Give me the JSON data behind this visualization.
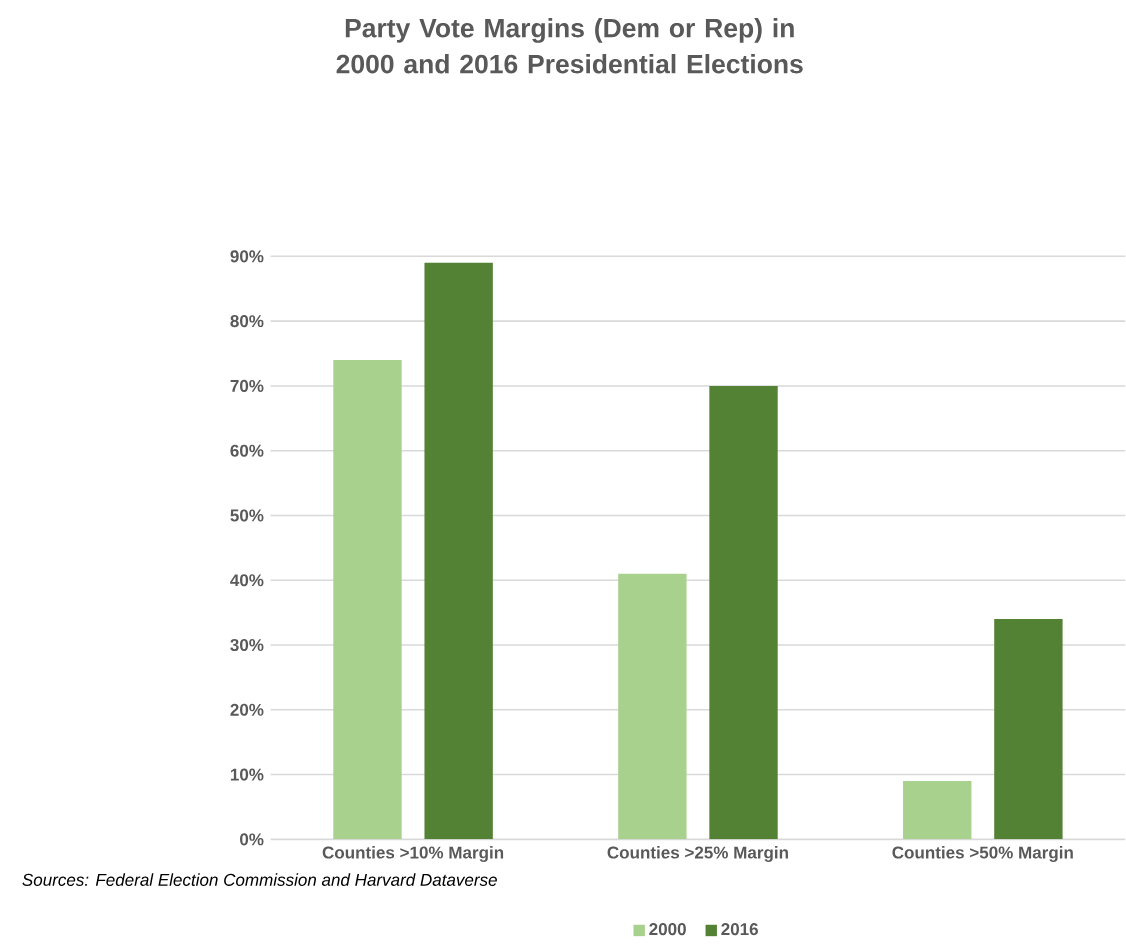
{
  "chart_data": {
    "type": "bar",
    "title": "Party Vote Margins (Dem or Rep) in 2000 and 2016 Presidential Elections",
    "categories": [
      "Counties >10% Margin",
      "Counties >25% Margin",
      "Counties >50% Margin"
    ],
    "series": [
      {
        "name": "2000",
        "color": "#a9d18e",
        "values": [
          74,
          41,
          9
        ]
      },
      {
        "name": "2016",
        "color": "#548235",
        "values": [
          89,
          70,
          34
        ]
      }
    ],
    "ylim": [
      0,
      90
    ],
    "yticks": [
      {
        "value": 0,
        "label": "0%"
      },
      {
        "value": 10,
        "label": "10%"
      },
      {
        "value": 20,
        "label": "20%"
      },
      {
        "value": 30,
        "label": "30%"
      },
      {
        "value": 40,
        "label": "40%"
      },
      {
        "value": 50,
        "label": "50%"
      },
      {
        "value": 60,
        "label": "60%"
      },
      {
        "value": 70,
        "label": "70%"
      },
      {
        "value": 80,
        "label": "80%"
      },
      {
        "value": 90,
        "label": "90%"
      }
    ],
    "grid": "y",
    "legend": "bottom",
    "annotations": [
      "Sources: Federal Election Commission and Harvard Dataverse"
    ]
  }
}
